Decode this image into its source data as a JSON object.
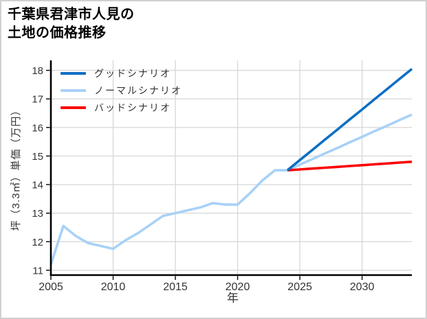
{
  "header": {
    "title_line1": "千葉県君津市人見の",
    "title_line2": "土地の価格推移"
  },
  "legend": {
    "items": [
      {
        "label": "グッドシナリオ",
        "color": "#0d6fc4"
      },
      {
        "label": "ノーマルシナリオ",
        "color": "#a8d1f7"
      },
      {
        "label": "バッドシナリオ",
        "color": "#fa0000"
      }
    ]
  },
  "chart_data": {
    "type": "line",
    "title": "千葉県君津市人見の土地の価格推移",
    "xlabel": "年",
    "ylabel": "坪（3.3㎡）単価（万円）",
    "xlim": [
      2005,
      2034
    ],
    "ylim": [
      10.83,
      18.35
    ],
    "xticks": [
      2005,
      2010,
      2015,
      2020,
      2025,
      2030
    ],
    "yticks": [
      11,
      12,
      13,
      14,
      15,
      16,
      17,
      18
    ],
    "grid": true,
    "legend_position": "upper left",
    "colors": {
      "grid": "#d9d9d9",
      "axis": "#000000",
      "tick_label": "#333333",
      "background": "#ffffff",
      "frame_border": "#d0d0d0"
    },
    "series": [
      {
        "key": "normal-scenario",
        "name": "ノーマルシナリオ",
        "color": "#a8d1f7",
        "x": [
          2005,
          2006,
          2007,
          2008,
          2009,
          2010,
          2011,
          2012,
          2013,
          2014,
          2015,
          2016,
          2017,
          2018,
          2019,
          2020,
          2021,
          2022,
          2023,
          2024,
          2025,
          2026,
          2027,
          2028,
          2029,
          2030,
          2031,
          2032,
          2033,
          2034
        ],
        "y": [
          11.2,
          12.55,
          12.2,
          11.95,
          11.85,
          11.75,
          12.05,
          12.3,
          12.6,
          12.9,
          13.0,
          13.1,
          13.2,
          13.35,
          13.3,
          13.3,
          13.7,
          14.15,
          14.5,
          14.5,
          14.7,
          14.89,
          15.09,
          15.28,
          15.48,
          15.67,
          15.87,
          16.06,
          16.26,
          16.45
        ]
      },
      {
        "key": "bad-scenario",
        "name": "バッドシナリオ",
        "color": "#fa0000",
        "x": [
          2024,
          2025,
          2026,
          2027,
          2028,
          2029,
          2030,
          2031,
          2032,
          2033,
          2034
        ],
        "y": [
          14.5,
          14.53,
          14.56,
          14.59,
          14.62,
          14.65,
          14.68,
          14.71,
          14.74,
          14.77,
          14.8
        ]
      },
      {
        "key": "good-scenario",
        "name": "グッドシナリオ",
        "color": "#0d6fc4",
        "x": [
          2024,
          2025,
          2026,
          2027,
          2028,
          2029,
          2030,
          2031,
          2032,
          2033,
          2034
        ],
        "y": [
          14.5,
          14.86,
          15.21,
          15.57,
          15.92,
          16.28,
          16.63,
          16.99,
          17.34,
          17.7,
          18.05
        ]
      }
    ]
  }
}
